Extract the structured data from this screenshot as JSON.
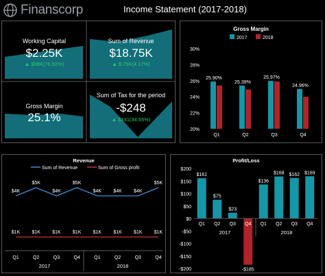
{
  "header": {
    "brand": "Finanscorp",
    "title": "Income Statement (2017-2018)"
  },
  "colors": {
    "teal": "#1597a8",
    "red": "#b0232b",
    "line_blue": "#3a8fd6",
    "line_red": "#c0392b",
    "positive": "#2ecc71"
  },
  "kpis": {
    "working_capital": {
      "label": "Working Capital",
      "value": "$2.25K",
      "delta": "▲ $98K(76.92%)"
    },
    "revenue": {
      "label": "Sum of Revenue",
      "value": "$18.75K",
      "delta": "▲ $.75K(4.17%)"
    },
    "gross_margin": {
      "label": "Gross Margin",
      "value": "25.1%"
    },
    "tax": {
      "label": "Sum of Tax for the period",
      "value": "-$248",
      "delta": "▲ $131(34.55%)"
    }
  },
  "chart_data": [
    {
      "type": "bar",
      "title": "Gross Margin",
      "categories": [
        "Q1",
        "Q2",
        "Q3",
        "Q4"
      ],
      "series": [
        {
          "name": "2017",
          "values": [
            25.9,
            25.39,
            25.97,
            24.96
          ],
          "labels": [
            "25.90%",
            "25.39%",
            "25.97%",
            "24.96%"
          ]
        },
        {
          "name": "2018",
          "values": [
            25.4,
            24.9,
            25.9,
            24.0
          ]
        }
      ],
      "ylim": [
        20,
        30
      ],
      "yticks": [
        "20%",
        "22%",
        "24%",
        "26%",
        "28%",
        "30%"
      ],
      "legend": "top"
    },
    {
      "type": "line",
      "title": "Revenue",
      "categories": [
        "Q1",
        "Q2",
        "Q3",
        "Q4",
        "Q1",
        "Q2",
        "Q3",
        "Q4"
      ],
      "groups": [
        "2017",
        "2018"
      ],
      "series": [
        {
          "name": "Sum of Revenue",
          "values": [
            4000,
            5000,
            4000,
            5000,
            4000,
            4000,
            4000,
            5000
          ],
          "labels": [
            "$4K",
            "$5K",
            "$4K",
            "$5K",
            "$4K",
            "$4K",
            "$4K",
            "$5K"
          ]
        },
        {
          "name": "Sum of Gross profit",
          "values": [
            1000,
            1000,
            1000,
            1000,
            1000,
            1000,
            1000,
            1000
          ],
          "labels": [
            "$1K",
            "$1K",
            "$1K",
            "$1K",
            "$1K",
            "$1K",
            "$1K",
            "$1K"
          ]
        }
      ],
      "legend": "top"
    },
    {
      "type": "bar",
      "title": "Profit/Loss",
      "categories": [
        "Q1",
        "Q2",
        "Q3",
        "Q4",
        "Q1",
        "Q2",
        "Q3",
        "Q4"
      ],
      "groups": [
        "2017",
        "2018"
      ],
      "values": [
        161,
        75,
        23,
        -185,
        136,
        168,
        162,
        169
      ],
      "labels": [
        "$161",
        "$75",
        "$23",
        "-$185",
        "$136",
        "$168",
        "$162",
        "$169"
      ],
      "ylim": [
        -200,
        200
      ],
      "yticks": [
        "$200",
        "$150",
        "$100",
        "$50",
        "$0",
        "-$50",
        "-$100",
        "-$150",
        "-$200"
      ]
    }
  ]
}
